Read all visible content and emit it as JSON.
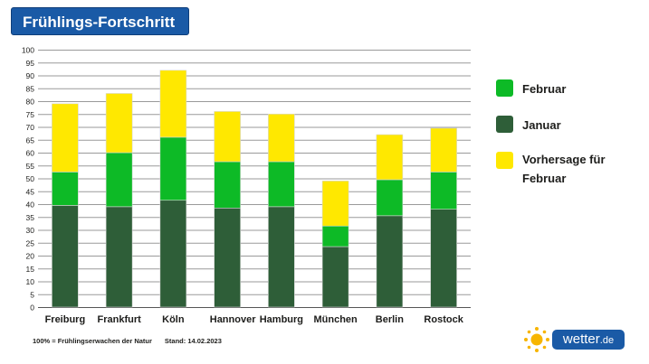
{
  "header": {
    "title": "Frühlings-Fortschritt"
  },
  "chart_data": {
    "type": "bar",
    "stacked": true,
    "categories": [
      "Freiburg",
      "Frankfurt",
      "Köln",
      "Hannover",
      "Hamburg",
      "München",
      "Berlin",
      "Rostock"
    ],
    "series": [
      {
        "name": "Januar",
        "color": "#2e5e38",
        "values": [
          39.5,
          39,
          41.5,
          38.5,
          39,
          23.5,
          35.5,
          38
        ]
      },
      {
        "name": "Februar",
        "color": "#0dba26",
        "values": [
          13,
          21,
          24.5,
          18,
          17.5,
          8,
          14,
          14.5
        ]
      },
      {
        "name": "Vorhersage für Februar",
        "color": "#ffe800",
        "values": [
          26.5,
          23,
          26,
          19.5,
          18.5,
          17.5,
          17.5,
          17
        ]
      }
    ],
    "ylim": [
      0,
      100
    ],
    "yticks": [
      0,
      5,
      10,
      15,
      20,
      25,
      30,
      35,
      40,
      45,
      50,
      55,
      60,
      65,
      70,
      75,
      80,
      85,
      90,
      95,
      100
    ],
    "grid": true
  },
  "legend": {
    "items": [
      {
        "label": "Februar",
        "color": "#0dba26"
      },
      {
        "label": "Januar",
        "color": "#2e5e38"
      },
      {
        "label": "Vorhersage für Februar",
        "color": "#ffe800"
      }
    ]
  },
  "footnote": {
    "definition": "100% = Frühlingserwachen der Natur",
    "date": "Stand: 14.02.2023"
  },
  "logo": {
    "name": "wetter",
    "tld": ".de",
    "icon": "sun-icon"
  }
}
